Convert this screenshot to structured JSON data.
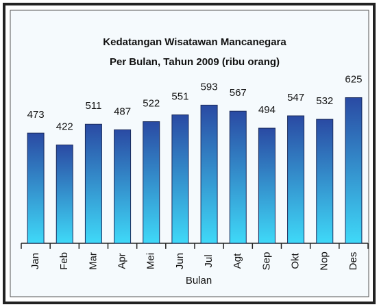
{
  "chart_data": {
    "type": "bar",
    "title": [
      "Kedatangan Wisatawan Mancanegara",
      "Per Bulan, Tahun 2009 (ribu orang)"
    ],
    "xlabel": "Bulan",
    "categories": [
      "Jan",
      "Feb",
      "Mar",
      "Apr",
      "Mei",
      "Jun",
      "Jul",
      "Agt",
      "Sep",
      "Okt",
      "Nop",
      "Des"
    ],
    "values": [
      473,
      422,
      511,
      487,
      522,
      551,
      593,
      567,
      494,
      547,
      532,
      625
    ],
    "gradient": [
      "#2a4aa3",
      "#3fd9f8"
    ],
    "ylim": [
      0,
      700
    ]
  }
}
